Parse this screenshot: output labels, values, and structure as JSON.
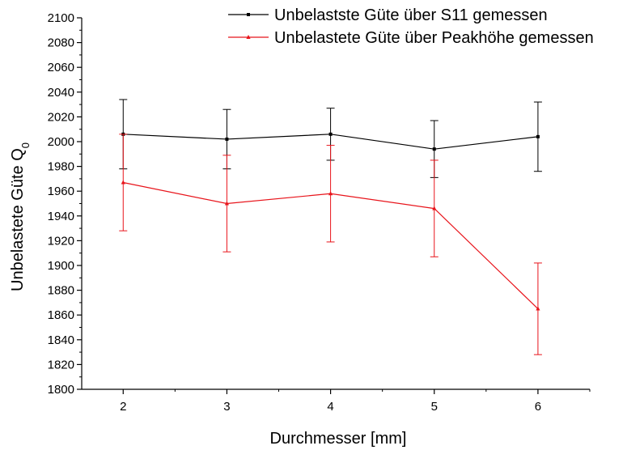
{
  "chart_data": {
    "type": "line",
    "xlabel": "Durchmesser [mm]",
    "ylabel": "Unbelastete Güte Q",
    "ylabel_subscript": "0",
    "xlim": [
      1.6,
      6.5
    ],
    "ylim": [
      1800,
      2100
    ],
    "x_ticks": [
      2,
      3,
      4,
      5,
      6
    ],
    "y_ticks": [
      1800,
      1820,
      1840,
      1860,
      1880,
      1900,
      1920,
      1940,
      1960,
      1980,
      2000,
      2020,
      2040,
      2060,
      2080,
      2100
    ],
    "grid": false,
    "legend_position": "top-right",
    "x": [
      2,
      3,
      4,
      5,
      6
    ],
    "series": [
      {
        "name": "Unbelastste Güte über S11 gemessen",
        "color": "#000000",
        "marker": "square",
        "values": [
          2006,
          2002,
          2006,
          1994,
          2004
        ],
        "errors": [
          28,
          24,
          21,
          23,
          28
        ]
      },
      {
        "name": "Unbelastete Güte über Peakhöhe gemessen",
        "color": "#e8141b",
        "marker": "triangle",
        "values": [
          1967,
          1950,
          1958,
          1946,
          1865
        ],
        "errors": [
          39,
          39,
          39,
          39,
          37
        ]
      }
    ]
  }
}
